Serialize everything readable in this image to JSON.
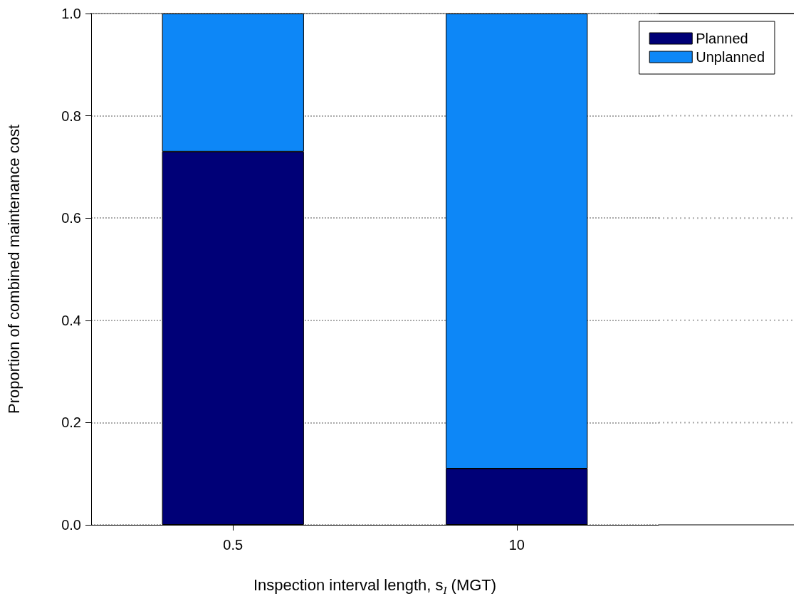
{
  "chart_data": {
    "type": "bar",
    "xlabel": "Inspection interval length, s$_{I}$ (MGT)",
    "ylabel": "Proportion of combined maintenance cost",
    "categories": [
      "0.5",
      "10"
    ],
    "series": [
      {
        "name": "Planned",
        "color": "#000077",
        "values": [
          0.73,
          0.11
        ]
      },
      {
        "name": "Unplanned",
        "color": "#0d87f7",
        "values": [
          0.27,
          0.89
        ]
      }
    ],
    "stacked": true,
    "ylim": [
      0,
      1
    ],
    "yticks": [
      {
        "value": 0,
        "label": "0.0"
      },
      {
        "value": 0.2,
        "label": "0.2"
      },
      {
        "value": 0.4,
        "label": "0.4"
      },
      {
        "value": 0.6,
        "label": "0.6"
      },
      {
        "value": 0.8,
        "label": "0.8"
      },
      {
        "value": 1,
        "label": "1.0"
      }
    ],
    "grid": "y",
    "legend": "top right"
  }
}
